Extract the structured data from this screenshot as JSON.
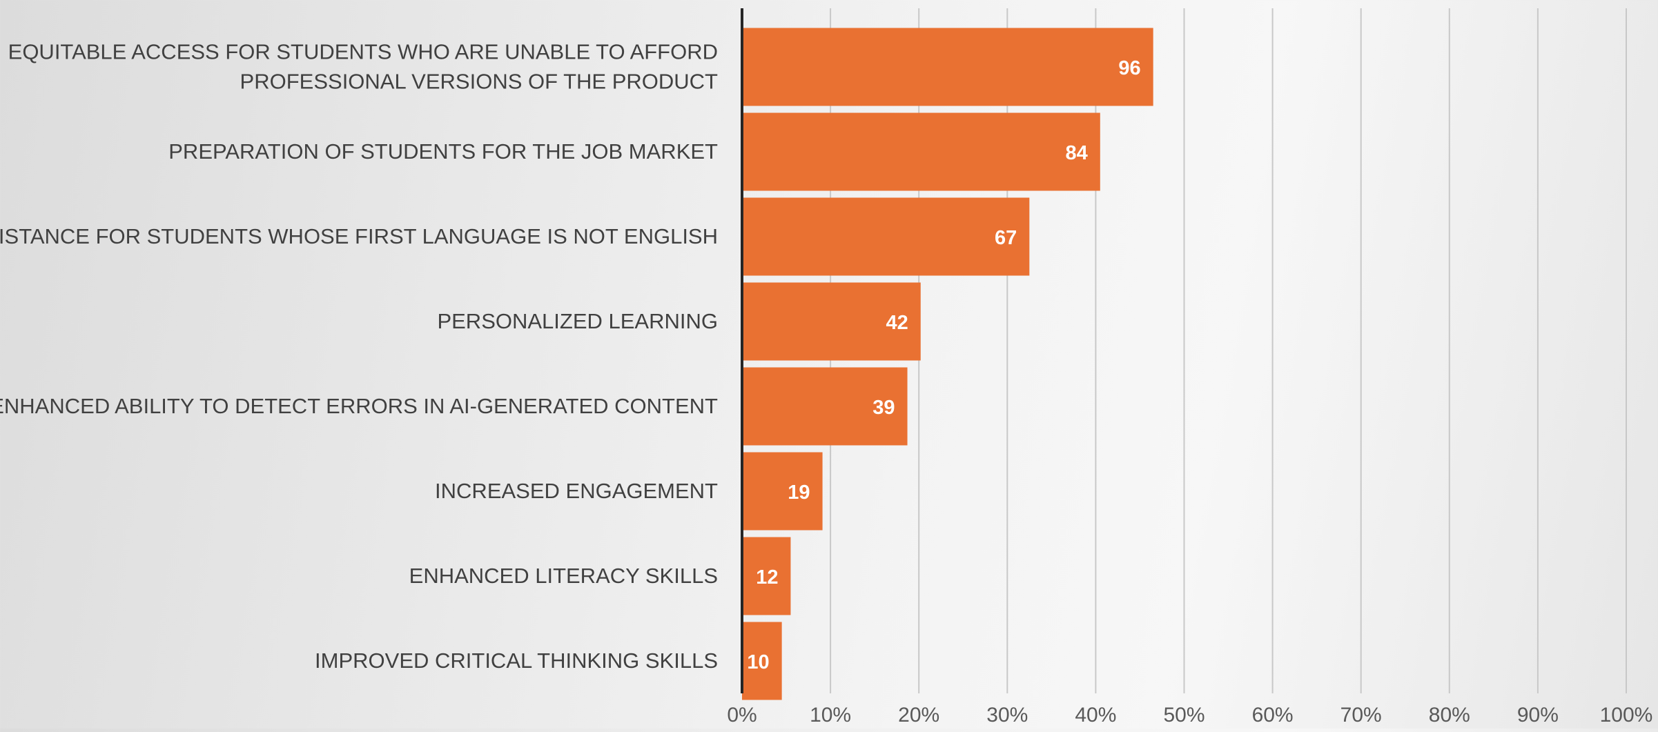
{
  "chart_data": {
    "type": "bar",
    "orientation": "horizontal",
    "categories": [
      "EQUITABLE ACCESS FOR STUDENTS WHO ARE UNABLE TO AFFORD PROFESSIONAL VERSIONS OF THE PRODUCT",
      "PREPARATION OF STUDENTS FOR THE JOB MARKET",
      "ASSISTANCE FOR STUDENTS WHOSE FIRST LANGUAGE IS NOT ENGLISH",
      "PERSONALIZED LEARNING",
      "ENHANCED ABILITY TO DETECT ERRORS IN AI-GENERATED CONTENT",
      "INCREASED ENGAGEMENT",
      "ENHANCED LITERACY SKILLS",
      "IMPROVED CRITICAL THINKING SKILLS"
    ],
    "category_lines": [
      [
        "EQUITABLE ACCESS FOR STUDENTS WHO ARE UNABLE TO AFFORD",
        "PROFESSIONAL VERSIONS OF THE PRODUCT"
      ],
      [
        "PREPARATION OF STUDENTS FOR THE JOB MARKET"
      ],
      [
        "ASSISTANCE FOR STUDENTS WHOSE FIRST LANGUAGE IS NOT ENGLISH"
      ],
      [
        "PERSONALIZED LEARNING"
      ],
      [
        "ENHANCED ABILITY TO DETECT ERRORS IN AI-GENERATED CONTENT"
      ],
      [
        "INCREASED ENGAGEMENT"
      ],
      [
        "ENHANCED LITERACY SKILLS"
      ],
      [
        "IMPROVED CRITICAL THINKING SKILLS"
      ]
    ],
    "values_pct": [
      46.5,
      40.5,
      32.5,
      20.2,
      18.7,
      9.1,
      5.5,
      4.5
    ],
    "data_labels": [
      "96",
      "84",
      "67",
      "42",
      "39",
      "19",
      "12",
      "10"
    ],
    "xlim": [
      0,
      100
    ],
    "x_ticks": [
      "0%",
      "10%",
      "20%",
      "30%",
      "40%",
      "50%",
      "60%",
      "70%",
      "80%",
      "90%",
      "100%"
    ],
    "title": "",
    "xlabel": "",
    "ylabel": "",
    "grid": "vertical",
    "legend": "none",
    "colors": {
      "bar": "#e97132",
      "data_label": "#ffffff",
      "category_text": "#404040",
      "tick_text": "#595959",
      "gridline": "#c8c8c8",
      "axis_line": "#262626"
    }
  }
}
